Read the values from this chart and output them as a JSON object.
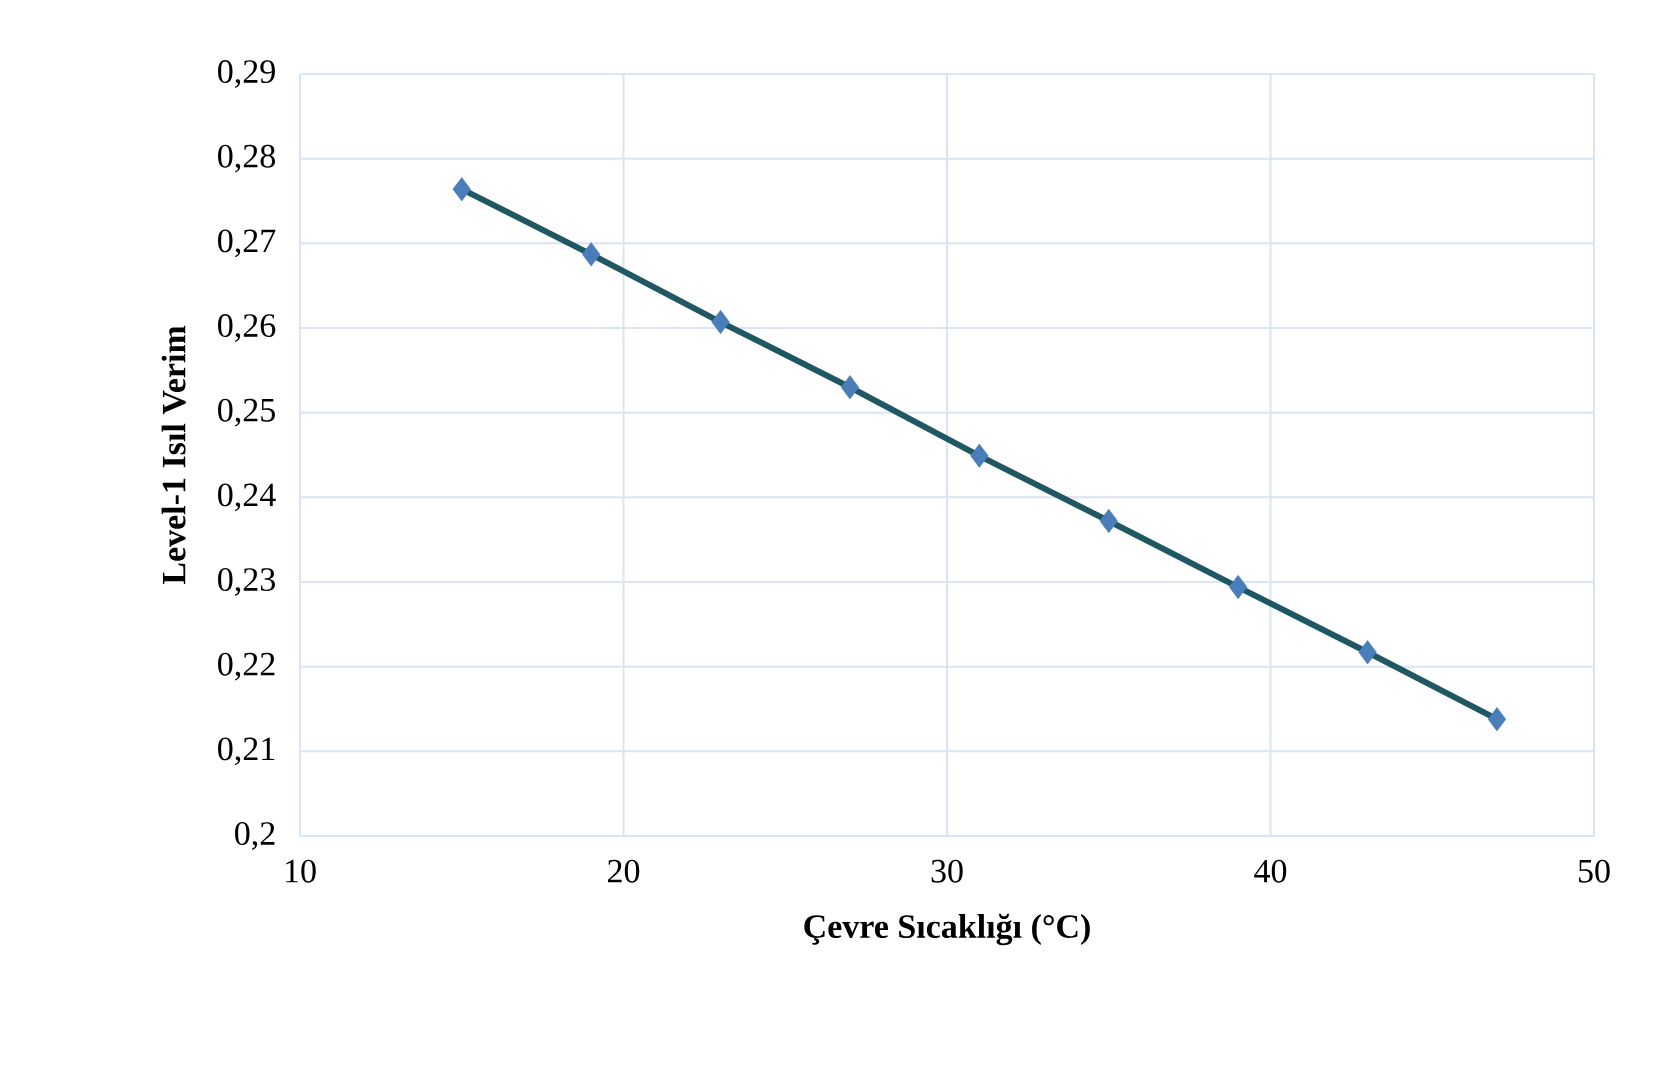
{
  "chart_data": {
    "type": "line",
    "xlabel": "Çevre Sıcaklığı (°C)",
    "ylabel": "Level-1 Isıl Verim",
    "x": [
      15,
      19,
      23,
      27,
      31,
      35,
      39,
      43,
      47
    ],
    "series": [
      {
        "color": "#1f5763",
        "values": [
          0.2764,
          0.2687,
          0.2607,
          0.253,
          0.2449,
          0.2372,
          0.2294,
          0.2217,
          0.2138
        ]
      }
    ],
    "marker": "diamond",
    "line_style": "solid",
    "grid": true,
    "xlim": [
      10,
      50
    ],
    "xticks": [
      10,
      20,
      30,
      40,
      50
    ],
    "ylim": [
      0.2,
      0.29
    ],
    "yticks": [
      {
        "value": 0.2,
        "label": "0,2"
      },
      {
        "value": 0.21,
        "label": "0,21"
      },
      {
        "value": 0.22,
        "label": "0,22"
      },
      {
        "value": 0.23,
        "label": "0,23"
      },
      {
        "value": 0.24,
        "label": "0,24"
      },
      {
        "value": 0.25,
        "label": "0,25"
      },
      {
        "value": 0.26,
        "label": "0,26"
      },
      {
        "value": 0.27,
        "label": "0,27"
      },
      {
        "value": 0.28,
        "label": "0,28"
      },
      {
        "value": 0.29,
        "label": "0,29"
      }
    ]
  }
}
